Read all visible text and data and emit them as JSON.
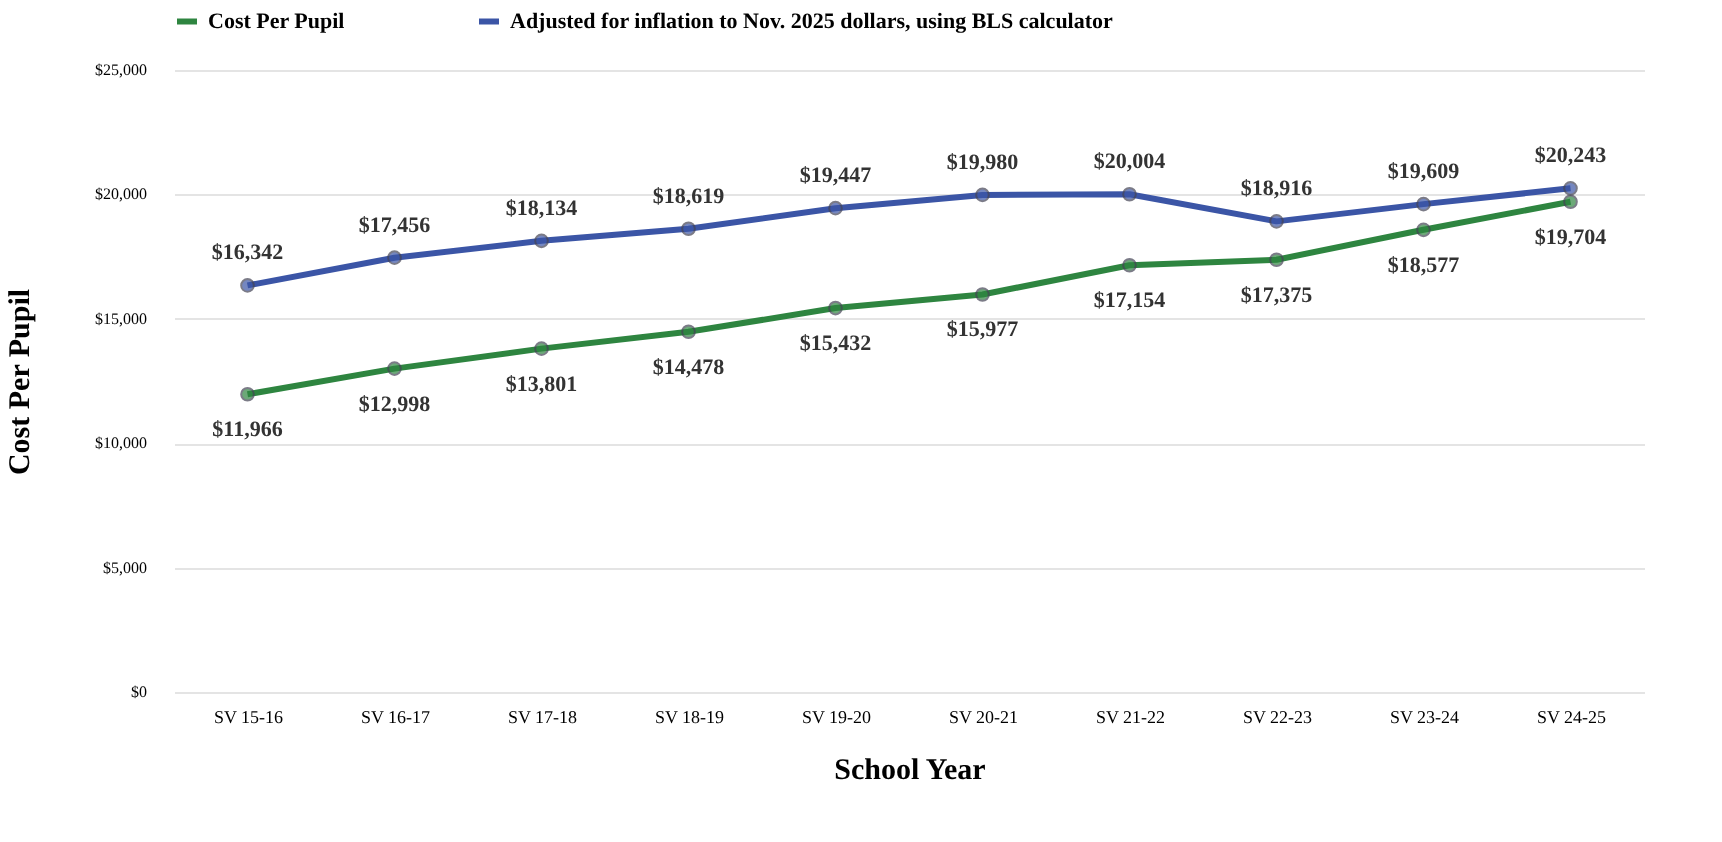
{
  "chart_data": {
    "type": "line",
    "xlabel": "School Year",
    "ylabel": "Cost Per Pupil",
    "categories": [
      "SV 15-16",
      "SV 16-17",
      "SV 17-18",
      "SV 18-19",
      "SV 19-20",
      "SV 20-21",
      "SV 21-22",
      "SV 22-23",
      "SV 23-24",
      "SV 24-25"
    ],
    "series": [
      {
        "name": "Cost Per Pupil",
        "color": "#2e8540",
        "values": [
          11966,
          12998,
          13801,
          14478,
          15432,
          15977,
          17154,
          17375,
          18577,
          19704
        ],
        "value_labels": [
          "$11,966",
          "$12,998",
          "$13,801",
          "$14,478",
          "$15,432",
          "$15,977",
          "$17,154",
          "$17,375",
          "$18,577",
          "$19,704"
        ]
      },
      {
        "name": "Adjusted for inflation to Nov. 2025 dollars, using BLS calculator",
        "color": "#3b55a6",
        "values": [
          16342,
          17456,
          18134,
          18619,
          19447,
          19980,
          20004,
          18916,
          19609,
          20243
        ],
        "value_labels": [
          "$16,342",
          "$17,456",
          "$18,134",
          "$18,619",
          "$19,447",
          "$19,980",
          "$20,004",
          "$18,916",
          "$19,609",
          "$20,243"
        ]
      }
    ],
    "ylim": [
      0,
      25000
    ],
    "yticks": [
      {
        "value": 0,
        "label": "$0"
      },
      {
        "value": 5000,
        "label": "$5,000"
      },
      {
        "value": 10000,
        "label": "$10,000"
      },
      {
        "value": 15000,
        "label": "$15,000"
      },
      {
        "value": 20000,
        "label": "$20,000"
      },
      {
        "value": 25000,
        "label": "$25,000"
      }
    ],
    "grid": "y",
    "legend": "top",
    "marker": "circle",
    "line_style": "solid"
  }
}
